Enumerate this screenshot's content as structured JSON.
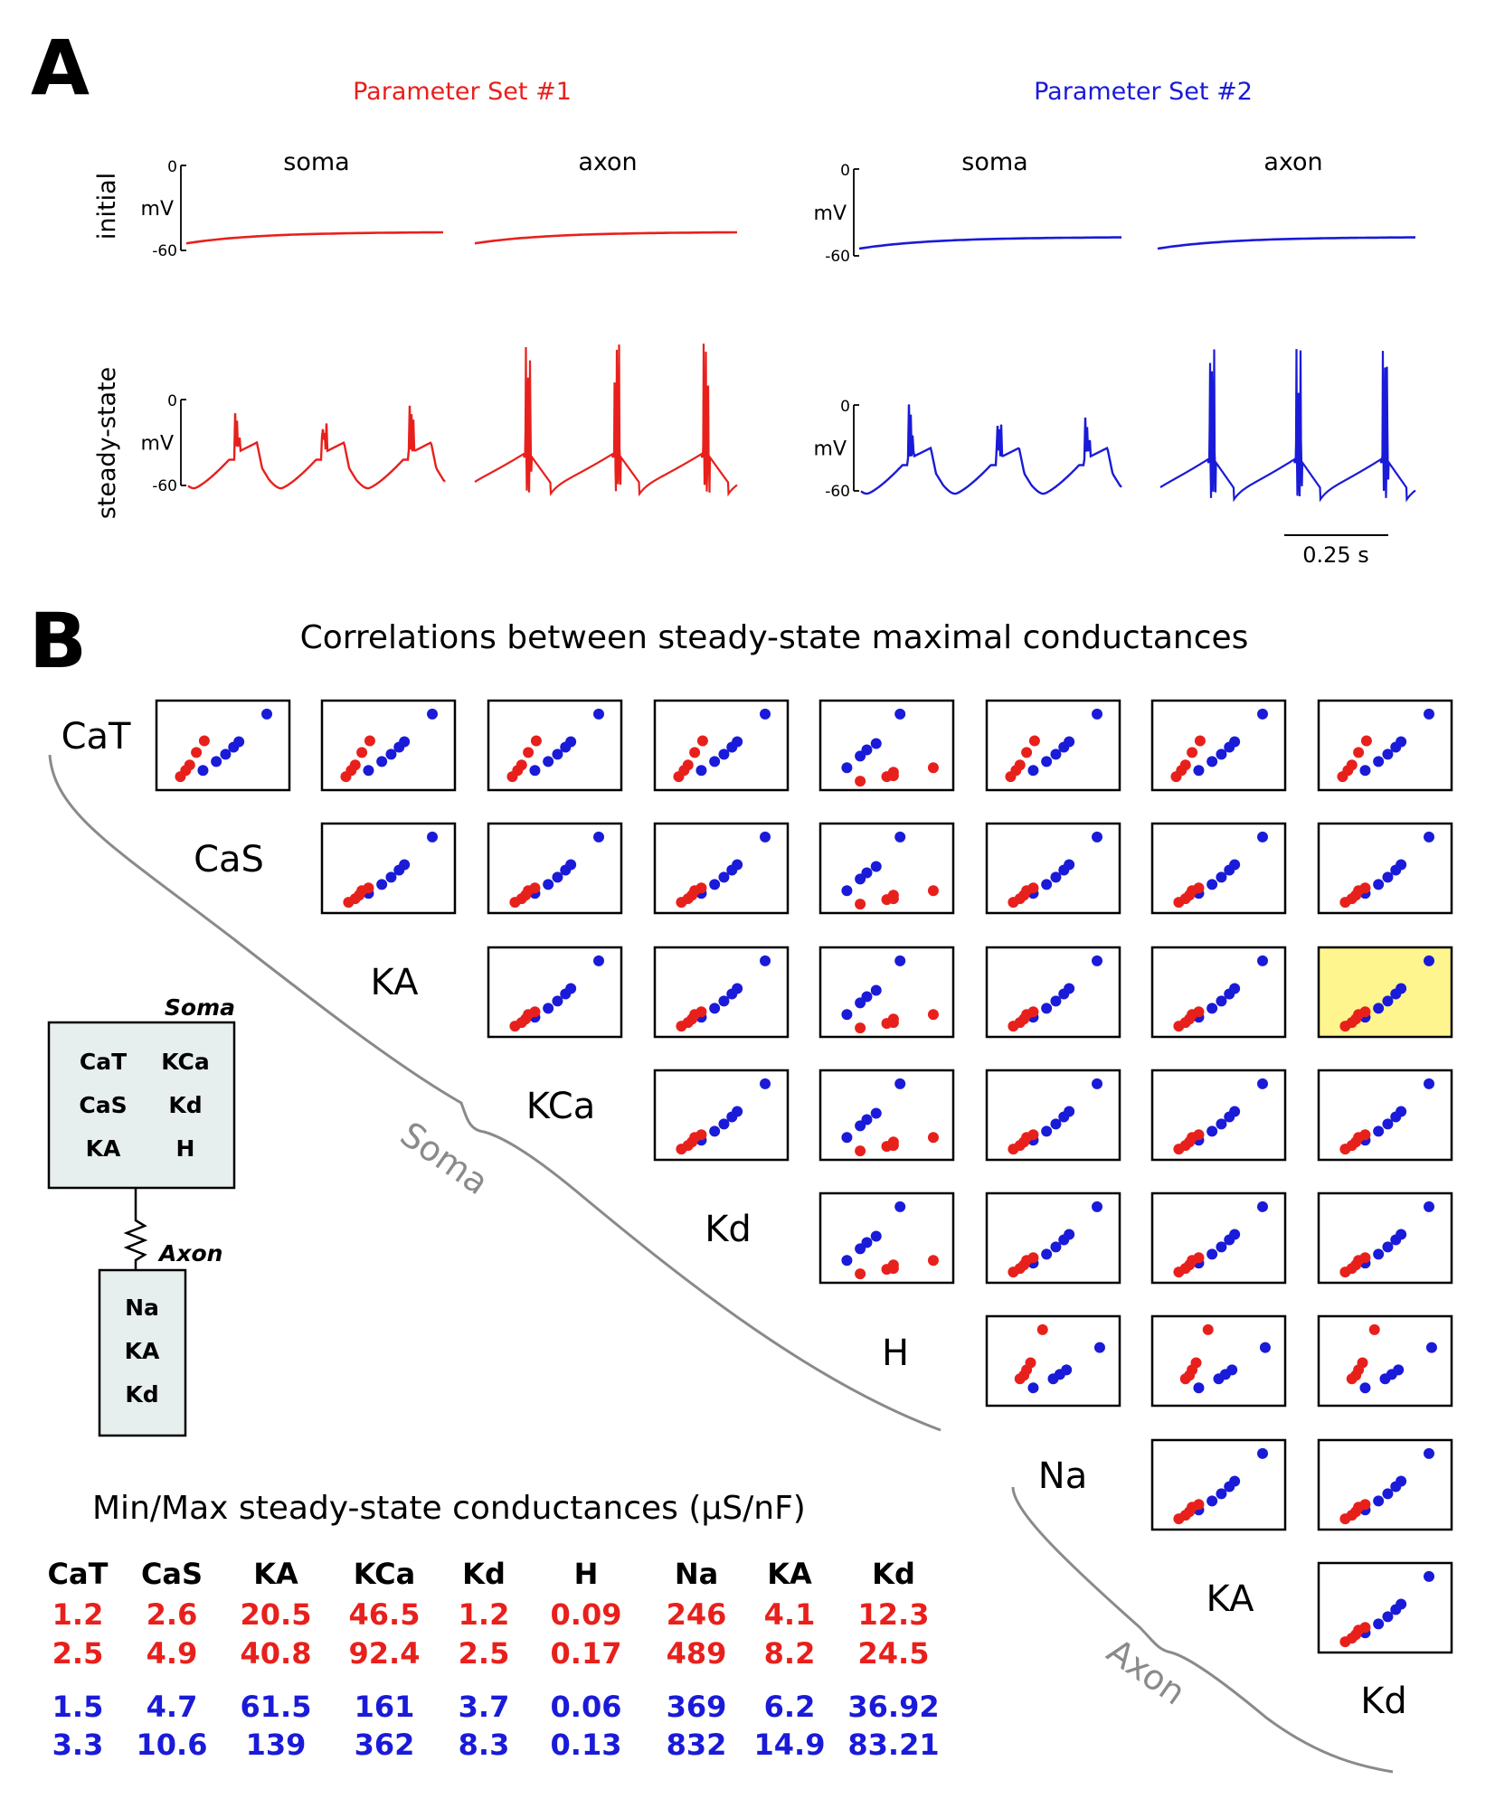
{
  "colors": {
    "set1": "#e8201c",
    "set2": "#1a1ad9",
    "gray": "#888888",
    "highlight": "#fff58f",
    "box_fill": "#e7eeee"
  },
  "panel_a": {
    "label": "A",
    "set1_title": "Parameter Set #1",
    "set2_title": "Parameter Set #2",
    "col_soma": "soma",
    "col_axon": "axon",
    "row_initial": "initial",
    "row_steady": "steady-state",
    "ytick_top": "0",
    "ytick_bottom": "-60",
    "yunit": "mV",
    "scalebar_label": "0.25 s"
  },
  "panel_b": {
    "label": "B",
    "title": "Correlations between steady-state maximal conductances",
    "channels": [
      "CaT",
      "CaS",
      "KA",
      "KCa",
      "Kd",
      "H",
      "Na",
      "KA",
      "Kd"
    ],
    "brace_soma": "Soma",
    "brace_axon": "Axon",
    "highlighted_cells": [
      [
        2,
        7
      ],
      [
        4,
        8
      ]
    ]
  },
  "model": {
    "soma_title": "Soma",
    "soma_channels": [
      "CaT",
      "KCa",
      "CaS",
      "Kd",
      "KA",
      "H"
    ],
    "axon_title": "Axon",
    "axon_channels": [
      "Na",
      "KA",
      "Kd"
    ]
  },
  "table": {
    "title": "Min/Max steady-state conductances (μS/nF)",
    "headers": [
      "CaT",
      "CaS",
      "KA",
      "KCa",
      "Kd",
      "H",
      "Na",
      "KA",
      "Kd"
    ],
    "set1_min": [
      "1.2",
      "2.6",
      "20.5",
      "46.5",
      "1.2",
      "0.09",
      "246",
      "4.1",
      "12.3"
    ],
    "set1_max": [
      "2.5",
      "4.9",
      "40.8",
      "92.4",
      "2.5",
      "0.17",
      "489",
      "8.2",
      "24.5"
    ],
    "set2_min": [
      "1.5",
      "4.7",
      "61.5",
      "161",
      "3.7",
      "0.06",
      "369",
      "6.2",
      "36.92"
    ],
    "set2_max": [
      "3.3",
      "10.6",
      "139",
      "362",
      "8.3",
      "0.13",
      "832",
      "14.9",
      "83.21"
    ]
  },
  "chart_data": {
    "type": "scatter",
    "title": "Correlations between steady-state maximal conductances",
    "variables": [
      "CaT",
      "CaS",
      "KA",
      "KCa",
      "Kd",
      "H",
      "Na",
      "KA",
      "Kd"
    ],
    "series": [
      {
        "name": "Parameter Set #1",
        "color": "#e8201c"
      },
      {
        "name": "Parameter Set #2",
        "color": "#1a1ad9"
      }
    ],
    "traces": {
      "ylim": [
        -60,
        0
      ],
      "rows": [
        "initial",
        "steady-state"
      ],
      "cols": [
        "soma",
        "axon"
      ],
      "time_scalebar": "0.25 s"
    }
  }
}
